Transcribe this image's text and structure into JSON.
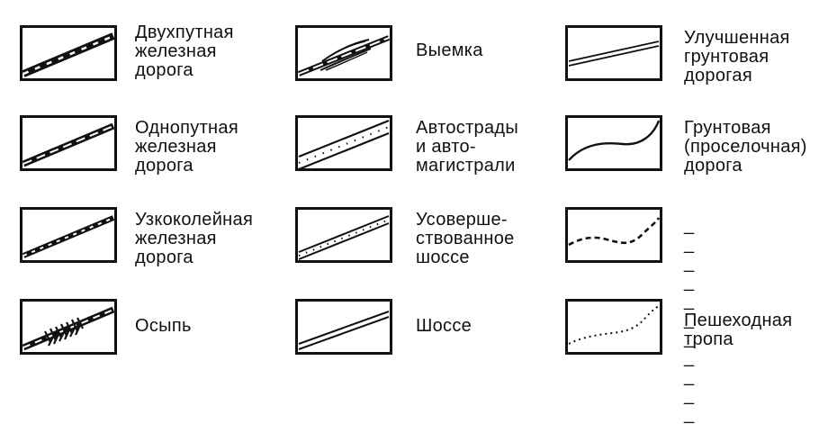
{
  "legend": [
    {
      "key": "double-track-railway",
      "label": "Двухпутная\nжелезная\nдорога"
    },
    {
      "key": "single-track-railway",
      "label": "Однопутная\nжелезная\nдорога"
    },
    {
      "key": "narrow-gauge-railway",
      "label": "Узкоколейная\nжелезная\nдорога"
    },
    {
      "key": "scree",
      "label": "Осыпь"
    },
    {
      "key": "cutting",
      "label": "Выемка"
    },
    {
      "key": "motorway",
      "label": "Автострады\nи авто-\nмагистрали"
    },
    {
      "key": "improved-highway",
      "label": "Усоверше-\nствованное\nшоссе"
    },
    {
      "key": "highway",
      "label": "Шоссе"
    },
    {
      "key": "improved-dirt-road",
      "label": "Улучшенная\nгрунтовая\nдорогая"
    },
    {
      "key": "dirt-road",
      "label": "Грунтовая\n(проселочная)\nдорога"
    },
    {
      "key": "unlabeled-dashed",
      "label": "_ _ _ _ _ _\n_ _ _ _ _"
    },
    {
      "key": "footpath",
      "label": "Пешеходная\nтропа"
    }
  ]
}
